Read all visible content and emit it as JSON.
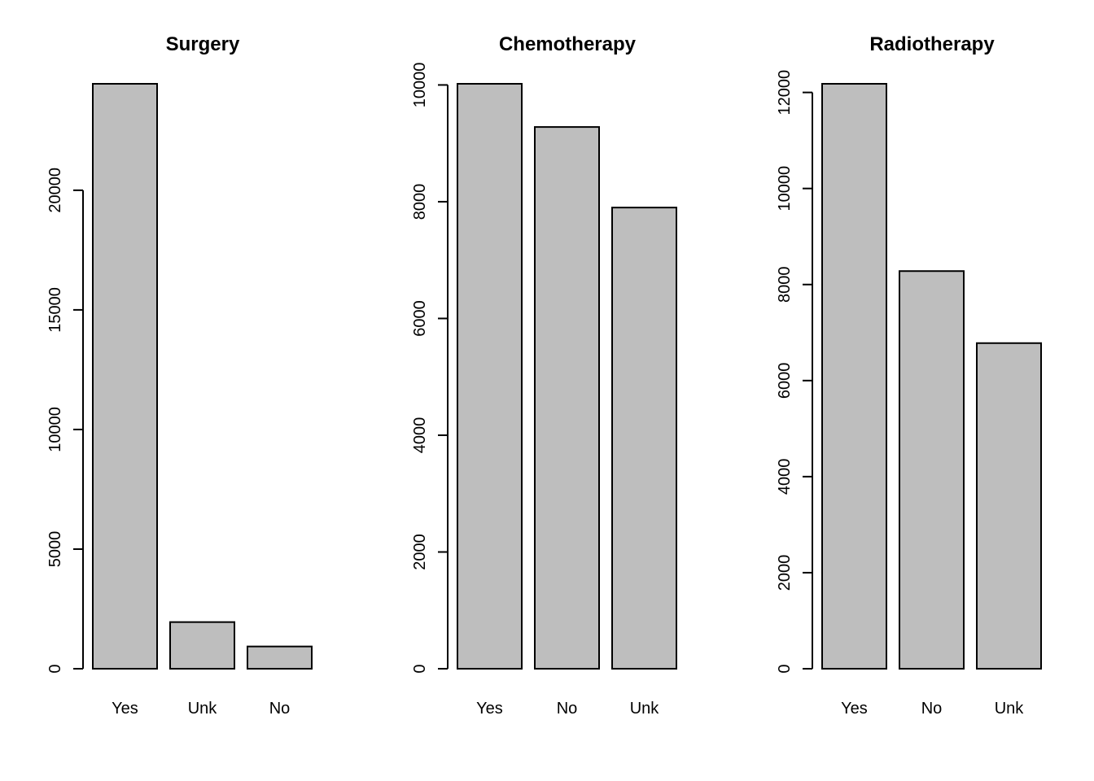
{
  "chart_data": [
    {
      "type": "bar",
      "title": "Surgery",
      "xlabel": "",
      "ylabel": "",
      "categories": [
        "Yes",
        "Unk",
        "No"
      ],
      "values": [
        24450,
        1950,
        930
      ],
      "ylim": [
        0,
        24450
      ],
      "yticks": [
        0,
        5000,
        10000,
        15000,
        20000
      ],
      "grid": false,
      "bar_color": "#bebebe",
      "edge_color": "#000000"
    },
    {
      "type": "bar",
      "title": "Chemotherapy",
      "xlabel": "",
      "ylabel": "",
      "categories": [
        "Yes",
        "No",
        "Unk"
      ],
      "values": [
        10020,
        9280,
        7900
      ],
      "ylim": [
        0,
        10020
      ],
      "yticks": [
        0,
        2000,
        4000,
        6000,
        8000,
        10000
      ],
      "grid": false,
      "bar_color": "#bebebe",
      "edge_color": "#000000"
    },
    {
      "type": "bar",
      "title": "Radiotherapy",
      "xlabel": "",
      "ylabel": "",
      "categories": [
        "Yes",
        "No",
        "Unk"
      ],
      "values": [
        12180,
        8280,
        6780
      ],
      "ylim": [
        0,
        12180
      ],
      "yticks": [
        0,
        2000,
        4000,
        6000,
        8000,
        10000,
        12000
      ],
      "grid": false,
      "bar_color": "#bebebe",
      "edge_color": "#000000"
    }
  ]
}
